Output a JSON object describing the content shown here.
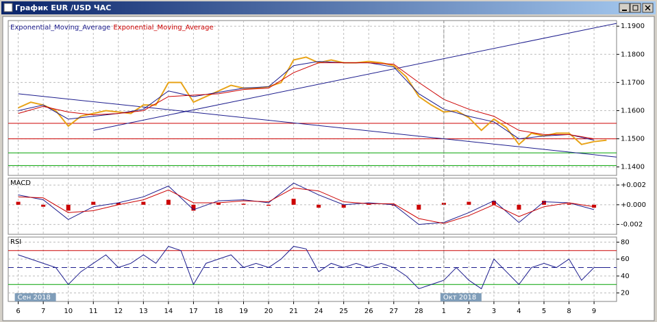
{
  "window_title": "График EUR /USD  ЧАС",
  "chart_data": [
    {
      "type": "line",
      "xlim": [
        -0.4,
        23.9
      ],
      "ylim": [
        1.137,
        1.192
      ],
      "yticks": [
        {
          "value": 1.14,
          "label": "1.1400"
        },
        {
          "value": 1.15,
          "label": "1.1500"
        },
        {
          "value": 1.16,
          "label": "1.1600"
        },
        {
          "value": 1.17,
          "label": "1.1700"
        },
        {
          "value": 1.18,
          "label": "1.1800"
        },
        {
          "value": 1.19,
          "label": "1.1900"
        }
      ],
      "xticks": [
        {
          "value": 0,
          "label": "6"
        },
        {
          "value": 1,
          "label": "7"
        },
        {
          "value": 2,
          "label": "10"
        },
        {
          "value": 3,
          "label": "11"
        },
        {
          "value": 4,
          "label": "12"
        },
        {
          "value": 5,
          "label": "13"
        },
        {
          "value": 6,
          "label": "14"
        },
        {
          "value": 7,
          "label": "17"
        },
        {
          "value": 8,
          "label": "18"
        },
        {
          "value": 9,
          "label": "19"
        },
        {
          "value": 10,
          "label": "20"
        },
        {
          "value": 11,
          "label": "21"
        },
        {
          "value": 12,
          "label": "24"
        },
        {
          "value": 13,
          "label": "25"
        },
        {
          "value": 14,
          "label": "26"
        },
        {
          "value": 15,
          "label": "27"
        },
        {
          "value": 16,
          "label": "28"
        },
        {
          "value": 17,
          "label": "1"
        },
        {
          "value": 18,
          "label": "2"
        },
        {
          "value": 19,
          "label": "3"
        },
        {
          "value": 20,
          "label": "4"
        },
        {
          "value": 21,
          "label": "5"
        },
        {
          "value": 22,
          "label": "8"
        },
        {
          "value": 23,
          "label": "9"
        }
      ],
      "period_labels": [
        {
          "value": 0,
          "label": "Сен 2018"
        },
        {
          "value": 17,
          "label": "Окт 2018"
        }
      ],
      "grid": true,
      "hlines": [
        {
          "value": 1.1555,
          "color": "#cc0000"
        },
        {
          "value": 1.15,
          "color": "#cc0000"
        },
        {
          "value": 1.145,
          "color": "#00a000"
        },
        {
          "value": 1.1405,
          "color": "#00a000"
        }
      ],
      "trendlines": [
        {
          "x": [
            0,
            23.9
          ],
          "y": [
            1.166,
            1.1435
          ],
          "color": "#1a1a8c"
        },
        {
          "x": [
            3,
            23.9
          ],
          "y": [
            1.153,
            1.191
          ],
          "color": "#1a1a8c"
        }
      ],
      "series": [
        {
          "color": "#e8a317",
          "width": 2,
          "x": [
            0,
            0.5,
            1,
            1.5,
            2,
            2.5,
            3,
            3.5,
            4,
            4.5,
            5,
            5.5,
            6,
            6.5,
            7,
            7.5,
            8,
            8.5,
            9,
            9.5,
            10,
            10.5,
            11,
            11.5,
            12,
            12.5,
            13,
            13.5,
            14,
            14.5,
            15,
            15.5,
            16,
            16.5,
            17,
            17.5,
            18,
            18.5,
            19,
            19.5,
            20,
            20.5,
            21,
            21.5,
            22,
            22.5,
            23,
            23.5
          ],
          "values": [
            1.161,
            1.163,
            1.162,
            1.16,
            1.1545,
            1.158,
            1.159,
            1.16,
            1.1595,
            1.159,
            1.162,
            1.162,
            1.17,
            1.17,
            1.163,
            1.165,
            1.167,
            1.169,
            1.168,
            1.168,
            1.1685,
            1.17,
            1.178,
            1.179,
            1.177,
            1.178,
            1.177,
            1.177,
            1.1775,
            1.177,
            1.176,
            1.172,
            1.165,
            1.162,
            1.1595,
            1.16,
            1.1575,
            1.153,
            1.157,
            1.154,
            1.148,
            1.152,
            1.151,
            1.152,
            1.152,
            1.148,
            1.149,
            1.1495
          ]
        },
        {
          "name": "Exponential_Moving_Average",
          "color": "#1a1a8c",
          "width": 1,
          "x": [
            0,
            1,
            2,
            3,
            4,
            5,
            6,
            7,
            8,
            9,
            10,
            11,
            12,
            13,
            14,
            15,
            16,
            17,
            18,
            19,
            20,
            21,
            22,
            23
          ],
          "values": [
            1.16,
            1.162,
            1.157,
            1.158,
            1.159,
            1.1605,
            1.167,
            1.165,
            1.1665,
            1.168,
            1.1685,
            1.176,
            1.1775,
            1.177,
            1.177,
            1.1755,
            1.166,
            1.1605,
            1.158,
            1.156,
            1.15,
            1.151,
            1.1515,
            1.1495
          ]
        },
        {
          "name": "Exponential_Moving_Average",
          "color": "#cc0000",
          "width": 1,
          "x": [
            0,
            1,
            2,
            3,
            4,
            5,
            6,
            7,
            8,
            9,
            10,
            11,
            12,
            13,
            14,
            15,
            16,
            17,
            18,
            19,
            20,
            21,
            22,
            23
          ],
          "values": [
            1.159,
            1.1615,
            1.1595,
            1.1585,
            1.159,
            1.16,
            1.165,
            1.1655,
            1.166,
            1.1675,
            1.168,
            1.1735,
            1.177,
            1.177,
            1.177,
            1.1765,
            1.17,
            1.164,
            1.1605,
            1.158,
            1.153,
            1.1515,
            1.1515,
            1.15
          ]
        }
      ]
    },
    {
      "type": "line",
      "title": "MACD",
      "ylim": [
        -0.003,
        0.0027
      ],
      "yticks": [
        {
          "value": 0.002,
          "label": "+0.002"
        },
        {
          "value": 0,
          "label": "+0.000"
        },
        {
          "value": -0.002,
          "label": "-0.002"
        }
      ],
      "grid": true,
      "hlines": [],
      "trendlines": [],
      "series": [
        {
          "color": "#cc0000",
          "style": "bar",
          "x": [
            0,
            1,
            2,
            3,
            4,
            5,
            6,
            7,
            8,
            9,
            10,
            11,
            12,
            13,
            14,
            15,
            16,
            17,
            18,
            19,
            20,
            21,
            22,
            23
          ],
          "values": [
            0.0003,
            -0.0002,
            -0.0006,
            0.0003,
            0.0002,
            0.0003,
            0.0005,
            -0.0006,
            0.0002,
            0.0001,
            -0.0001,
            0.0006,
            -0.0003,
            -0.0003,
            0.0001,
            -0.0001,
            -0.0005,
            0.0002,
            0.0003,
            0.0004,
            -0.0005,
            0.0004,
            0.0001,
            -0.0003
          ]
        },
        {
          "color": "#1a1a8c",
          "width": 1,
          "x": [
            0,
            1,
            2,
            3,
            4,
            5,
            6,
            7,
            8,
            9,
            10,
            11,
            12,
            13,
            14,
            15,
            16,
            17,
            18,
            19,
            20,
            21,
            22,
            23
          ],
          "values": [
            0.001,
            0.0005,
            -0.0015,
            -0.0002,
            0.0002,
            0.0008,
            0.0019,
            -0.0005,
            0.0004,
            0.0005,
            0.0002,
            0.0022,
            0.001,
            0,
            0.0002,
            0,
            -0.002,
            -0.0018,
            -0.0008,
            0.0004,
            -0.0018,
            0.0003,
            0.0002,
            -0.0005
          ]
        },
        {
          "color": "#cc0000",
          "width": 1,
          "x": [
            0,
            1,
            2,
            3,
            4,
            5,
            6,
            7,
            8,
            9,
            10,
            11,
            12,
            13,
            14,
            15,
            16,
            17,
            18,
            19,
            20,
            21,
            22,
            23
          ],
          "values": [
            0.0008,
            0.0007,
            -0.0008,
            -0.0006,
            0,
            0.0005,
            0.0015,
            0.0002,
            0.0002,
            0.0004,
            0.0003,
            0.0017,
            0.0014,
            0.0003,
            0.0001,
            0.0001,
            -0.0014,
            -0.0019,
            -0.0011,
            0,
            -0.0012,
            -0.0002,
            0.0002,
            -0.0002
          ]
        }
      ]
    },
    {
      "type": "line",
      "title": "RSI",
      "ylim": [
        10,
        86
      ],
      "yticks": [
        20,
        40,
        60,
        80
      ],
      "grid": true,
      "hlines": [
        {
          "value": 70,
          "color": "#cc0000"
        },
        {
          "value": 50,
          "color": "#1a1a8c",
          "dashed": true
        },
        {
          "value": 30,
          "color": "#00a000"
        }
      ],
      "trendlines": [],
      "series": [
        {
          "color": "#1a1a8c",
          "width": 1,
          "x": [
            0,
            0.5,
            1,
            1.5,
            2,
            2.5,
            3,
            3.5,
            4,
            4.5,
            5,
            5.5,
            6,
            6.5,
            7,
            7.5,
            8,
            8.5,
            9,
            9.5,
            10,
            10.5,
            11,
            11.5,
            12,
            12.5,
            13,
            13.5,
            14,
            14.5,
            15,
            15.5,
            16,
            16.5,
            17,
            17.5,
            18,
            18.5,
            19,
            19.5,
            20,
            20.5,
            21,
            21.5,
            22,
            22.5,
            23,
            23.5
          ],
          "values": [
            65,
            60,
            55,
            50,
            30,
            45,
            55,
            65,
            50,
            55,
            65,
            55,
            75,
            70,
            30,
            55,
            60,
            65,
            50,
            55,
            50,
            60,
            75,
            72,
            45,
            55,
            50,
            55,
            50,
            55,
            50,
            40,
            25,
            30,
            35,
            50,
            35,
            25,
            60,
            45,
            30,
            50,
            55,
            50,
            60,
            35,
            50,
            50
          ]
        }
      ]
    }
  ]
}
